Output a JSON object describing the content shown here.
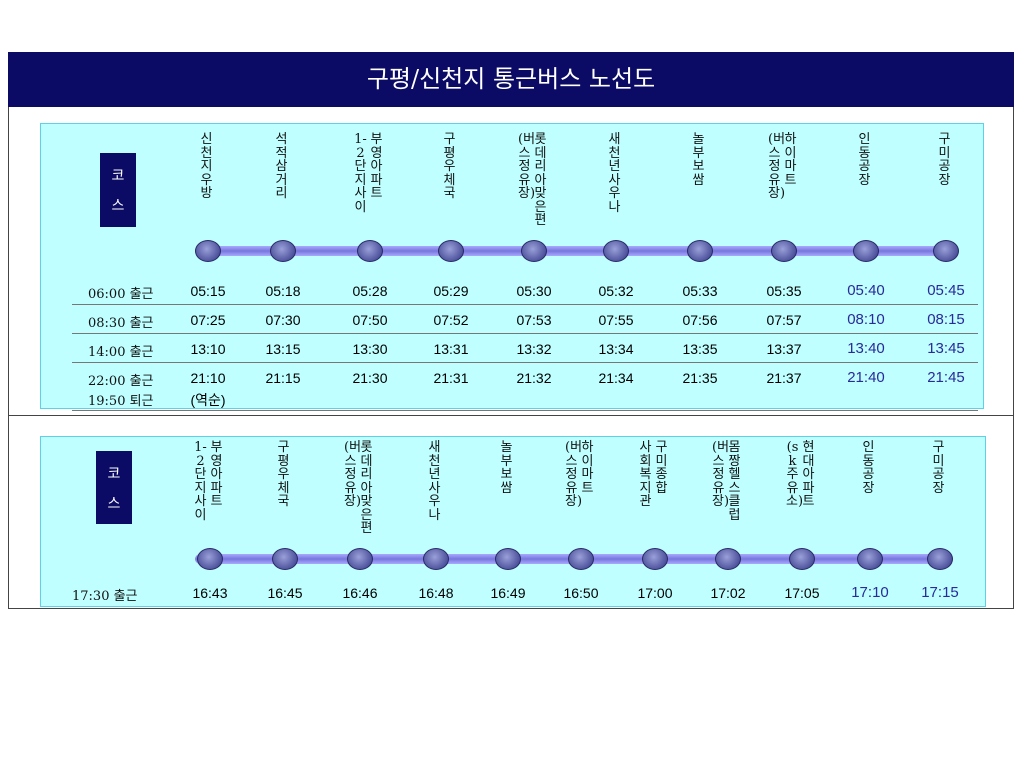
{
  "title": "구평/신천지 통근버스 노선도",
  "course_label": [
    "코",
    "스"
  ],
  "route1": {
    "stops": [
      [
        "신천지우방"
      ],
      [
        "석적삼거리"
      ],
      [
        "부영아파트",
        "1-2단지사이"
      ],
      [
        "구평우체국"
      ],
      [
        "롯데리아맞은편",
        "(버스정유장)"
      ],
      [
        "새천년사우나"
      ],
      [
        "놀부보쌈"
      ],
      [
        "하이마트",
        "(버스정유장)"
      ],
      [
        "인동공장"
      ],
      [
        "구미공장"
      ]
    ],
    "rows": [
      {
        "depart": "06:00 출근",
        "times": [
          "05:15",
          "05:18",
          "05:28",
          "05:29",
          "05:30",
          "05:32",
          "05:33",
          "05:35",
          "05:40",
          "05:45"
        ]
      },
      {
        "depart": "08:30 출근",
        "times": [
          "07:25",
          "07:30",
          "07:50",
          "07:52",
          "07:53",
          "07:55",
          "07:56",
          "07:57",
          "08:10",
          "08:15"
        ]
      },
      {
        "depart": "14:00 출근",
        "times": [
          "13:10",
          "13:15",
          "13:30",
          "13:31",
          "13:32",
          "13:34",
          "13:35",
          "13:37",
          "13:40",
          "13:45"
        ]
      },
      {
        "depart": "22:00 출근",
        "depart2": "19:50 퇴근",
        "times": [
          "21:10",
          "21:15",
          "21:30",
          "21:31",
          "21:32",
          "21:34",
          "21:35",
          "21:37",
          "21:40",
          "21:45"
        ],
        "note": "(역순)"
      }
    ]
  },
  "route2": {
    "stops": [
      [
        "부영아파트",
        "1-2단지사이"
      ],
      [
        "구평우체국"
      ],
      [
        "롯데리아맞은편",
        "(버스정유장)"
      ],
      [
        "새천년사우나"
      ],
      [
        "놀부보쌈"
      ],
      [
        "하이마트",
        "(버스정유장)"
      ],
      [
        "구미종합",
        "사회복지관"
      ],
      [
        "몸짱헬스클럽",
        "(버스정유장)"
      ],
      [
        "현대아파트",
        "(sk주유소)"
      ],
      [
        "인동공장"
      ],
      [
        "구미공장"
      ]
    ],
    "rows": [
      {
        "depart": "17:30 출근",
        "times": [
          "16:43",
          "16:45",
          "16:46",
          "16:48",
          "16:49",
          "16:50",
          "17:00",
          "17:02",
          "17:05",
          "17:10",
          "17:15"
        ]
      }
    ]
  },
  "colors": {
    "title_bg": "#0b0b66",
    "panel_bg": "#bfffff",
    "highlight_time": "#2a2a9a"
  }
}
